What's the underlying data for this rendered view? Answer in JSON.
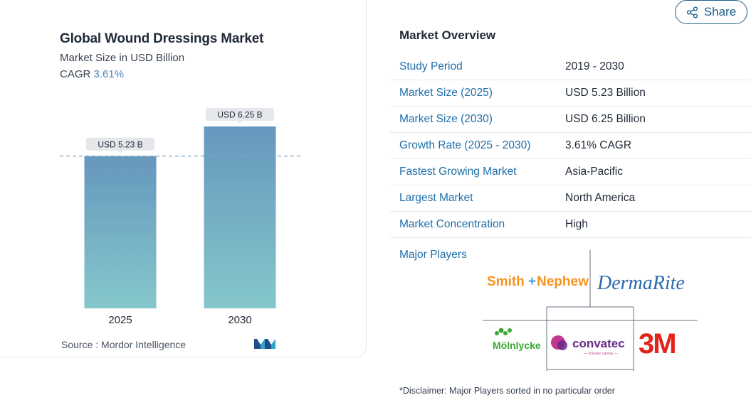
{
  "chart_card": {
    "title": "Global Wound Dressings Market",
    "subtitle": "Market Size in USD Billion",
    "cagr_label": "CAGR",
    "cagr_value": "3.61%",
    "source": "Source : Mordor Intelligence"
  },
  "chart_data": {
    "type": "bar",
    "title": "Global Wound Dressings Market",
    "ylabel": "Market Size in USD Billion",
    "categories": [
      "2025",
      "2030"
    ],
    "values": [
      5.23,
      6.25
    ],
    "data_labels": [
      "USD 5.23 B",
      "USD 6.25 B"
    ],
    "ylim": [
      0,
      6.25
    ],
    "reference_line_value": 5.23,
    "grid": false,
    "bar_gradient": [
      "#6697bd",
      "#85c7cb"
    ]
  },
  "share": {
    "label": "Share",
    "icon": "share-icon"
  },
  "overview": {
    "title": "Market Overview",
    "rows": [
      {
        "key": "Study Period",
        "value": "2019 - 2030"
      },
      {
        "key": "Market Size (2025)",
        "value": "USD 5.23 Billion"
      },
      {
        "key": "Market Size (2030)",
        "value": "USD 6.25 Billion"
      },
      {
        "key": "Growth Rate (2025 - 2030)",
        "value": "3.61% CAGR"
      },
      {
        "key": "Fastest Growing Market",
        "value": "Asia-Pacific"
      },
      {
        "key": "Largest Market",
        "value": "North America"
      },
      {
        "key": "Market Concentration",
        "value": "High"
      }
    ]
  },
  "major_players": {
    "title": "Major Players",
    "logos": {
      "smith_nephew": "SmithNephew",
      "dermarite": "DermaRite",
      "molnlycke": "Mölnlycke",
      "convatec": "convatec",
      "convatec_tagline": "— forever caring —",
      "three_m": "3M"
    }
  },
  "disclaimer": "*Disclaimer: Major Players sorted in no particular order",
  "colors": {
    "accent": "#1f6fa8",
    "share_border": "#1f5f8b",
    "cagr_value": "#4a86b8",
    "smith_orange": "#f7941d",
    "smith_blue": "#4a9cd6",
    "dermarite": "#2b6bb3",
    "molnlycke_green": "#3aa935",
    "convatec_purple": "#6a2a86",
    "convatec_pink": "#c0398c",
    "three_m_red": "#e2231a"
  }
}
